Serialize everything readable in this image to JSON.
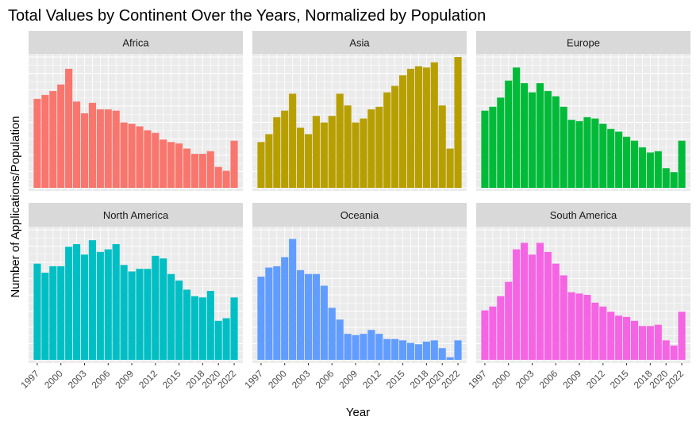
{
  "chart_data": {
    "type": "bar",
    "title": "Total Values by Continent Over the Years, Normalized by Population",
    "xlabel": "Year",
    "ylabel": "Number of Applications/Population",
    "x_tick_labels": [
      "1997",
      "2000",
      "2003",
      "2006",
      "2009",
      "2012",
      "2015",
      "2018",
      "2020",
      "2022"
    ],
    "x_tick_years": [
      1997,
      2000,
      2003,
      2006,
      2009,
      2012,
      2015,
      2018,
      2020,
      2022
    ],
    "years": [
      1997,
      1998,
      1999,
      2000,
      2001,
      2002,
      2003,
      2004,
      2005,
      2006,
      2007,
      2008,
      2009,
      2010,
      2011,
      2012,
      2013,
      2014,
      2015,
      2016,
      2017,
      2018,
      2019,
      2020,
      2021,
      2022
    ],
    "y_axis_note": "free y scales per panel, no tick labels; values relative to each panel's maximum (1.0 = panel maximum)",
    "grid": true,
    "background": "#EBEBEB",
    "strip_background": "#D9D9D9",
    "series": [
      {
        "name": "Africa",
        "color": "#F8766D",
        "values": [
          0.68,
          0.71,
          0.74,
          0.79,
          0.91,
          0.66,
          0.57,
          0.65,
          0.6,
          0.6,
          0.59,
          0.5,
          0.49,
          0.47,
          0.44,
          0.42,
          0.37,
          0.35,
          0.34,
          0.3,
          0.26,
          0.26,
          0.28,
          0.16,
          0.13,
          0.36
        ]
      },
      {
        "name": "Asia",
        "color": "#B79F00",
        "values": [
          0.35,
          0.41,
          0.54,
          0.59,
          0.72,
          0.46,
          0.41,
          0.55,
          0.5,
          0.55,
          0.72,
          0.63,
          0.5,
          0.53,
          0.6,
          0.62,
          0.73,
          0.78,
          0.86,
          0.91,
          0.93,
          0.92,
          0.96,
          0.63,
          0.3,
          1.0
        ]
      },
      {
        "name": "Europe",
        "color": "#00BA38",
        "values": [
          0.59,
          0.62,
          0.69,
          0.82,
          0.92,
          0.8,
          0.73,
          0.8,
          0.74,
          0.7,
          0.62,
          0.52,
          0.51,
          0.54,
          0.53,
          0.49,
          0.45,
          0.43,
          0.39,
          0.36,
          0.31,
          0.27,
          0.28,
          0.15,
          0.12,
          0.36
        ]
      },
      {
        "name": "North America",
        "color": "#00BFC4",
        "values": [
          0.74,
          0.67,
          0.72,
          0.72,
          0.87,
          0.89,
          0.81,
          0.92,
          0.83,
          0.85,
          0.89,
          0.73,
          0.68,
          0.7,
          0.7,
          0.8,
          0.78,
          0.66,
          0.61,
          0.54,
          0.49,
          0.48,
          0.53,
          0.3,
          0.32,
          0.48
        ]
      },
      {
        "name": "Oceania",
        "color": "#619CFF",
        "values": [
          0.64,
          0.71,
          0.72,
          0.79,
          0.93,
          0.69,
          0.66,
          0.66,
          0.57,
          0.4,
          0.31,
          0.2,
          0.19,
          0.2,
          0.23,
          0.2,
          0.16,
          0.16,
          0.15,
          0.13,
          0.12,
          0.14,
          0.15,
          0.09,
          0.02,
          0.15
        ]
      },
      {
        "name": "South America",
        "color": "#F564E3",
        "values": [
          0.38,
          0.41,
          0.49,
          0.6,
          0.85,
          0.9,
          0.81,
          0.9,
          0.83,
          0.74,
          0.65,
          0.52,
          0.51,
          0.5,
          0.44,
          0.41,
          0.37,
          0.34,
          0.33,
          0.3,
          0.26,
          0.26,
          0.27,
          0.15,
          0.11,
          0.37
        ]
      }
    ]
  }
}
